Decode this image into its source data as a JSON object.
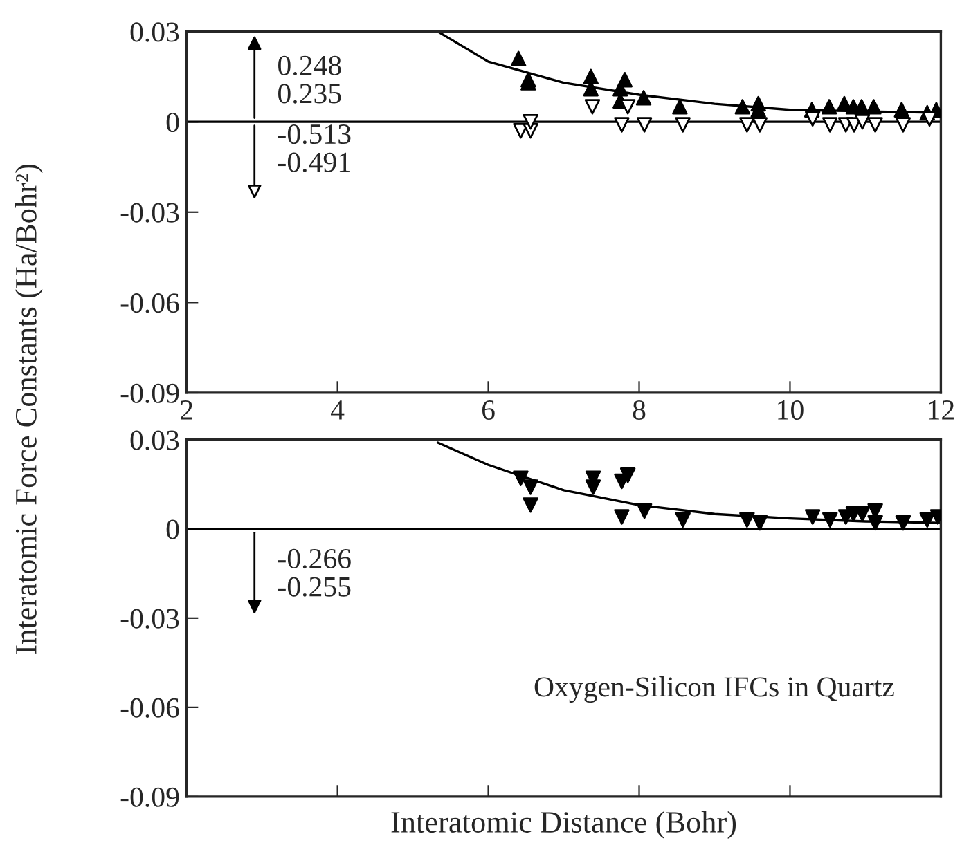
{
  "chart_data": [
    {
      "type": "scatter",
      "ylabel": "Interatomic Force Constants (Ha/Bohr²)",
      "xlim": [
        2,
        12
      ],
      "xticks": [
        2,
        4,
        6,
        8,
        10,
        12
      ],
      "ylim": [
        -0.09,
        0.03
      ],
      "yticks": [
        0.03,
        0,
        -0.03,
        -0.06,
        -0.09
      ],
      "grid": false,
      "annotations": [
        "0.248\n0.235",
        "-0.513\n-0.491"
      ],
      "ref_lines": [
        {
          "axis": "y",
          "value": 0,
          "label": null,
          "color": "#000000"
        }
      ],
      "series": [
        {
          "marker": "triangle",
          "color": "#000000",
          "x": [
            6.4,
            6.53,
            6.53,
            7.36,
            7.36,
            7.81,
            7.75,
            7.75,
            8.06,
            8.54,
            9.37,
            9.58,
            9.58,
            10.29,
            10.52,
            10.72,
            10.84,
            10.95,
            11.11,
            11.48,
            11.82,
            11.94
          ],
          "values": [
            0.021,
            0.014,
            0.013,
            0.015,
            0.011,
            0.014,
            0.011,
            0.007,
            0.008,
            0.005,
            0.005,
            0.006,
            0.004,
            0.004,
            0.005,
            0.006,
            0.005,
            0.005,
            0.005,
            0.004,
            0.003,
            0.004
          ]
        },
        {
          "marker": "triangle-down-open",
          "color": "#000000",
          "x": [
            6.43,
            6.56,
            6.56,
            7.38,
            7.85,
            7.77,
            8.07,
            8.58,
            9.43,
            9.6,
            10.3,
            10.53,
            10.74,
            10.85,
            10.96,
            11.13,
            11.5,
            11.85
          ],
          "values": [
            -0.003,
            -0.003,
            0.0,
            0.005,
            0.005,
            -0.001,
            -0.001,
            -0.001,
            -0.001,
            -0.001,
            0.001,
            -0.001,
            -0.001,
            -0.001,
            0.0,
            -0.001,
            -0.001,
            0.001
          ]
        },
        {
          "type": "line",
          "marker": "none",
          "color": "#000000",
          "x": [
            5.33,
            6,
            7,
            8,
            9,
            10,
            11,
            12
          ],
          "values": [
            0.03,
            0.02,
            0.013,
            0.009,
            0.006,
            0.004,
            0.0035,
            0.003
          ]
        }
      ]
    },
    {
      "type": "scatter",
      "xlabel": "Interatomic Distance (Bohr)",
      "xlim": [
        2,
        12
      ],
      "xticks": [
        2,
        4,
        6,
        8,
        10,
        12
      ],
      "ylim": [
        -0.09,
        0.03
      ],
      "yticks": [
        0.03,
        0,
        -0.03,
        -0.06,
        -0.09
      ],
      "tick_labels": "y",
      "grid": false,
      "annotations": [
        "-0.266\n-0.255",
        "Oxygen-Silicon IFCs in Quartz"
      ],
      "ref_lines": [
        {
          "axis": "y",
          "value": 0,
          "label": null,
          "color": "#000000"
        }
      ],
      "series": [
        {
          "marker": "triangle-down",
          "color": "#000000",
          "x": [
            6.43,
            6.56,
            6.56,
            7.39,
            7.39,
            7.85,
            7.77,
            7.77,
            8.07,
            8.58,
            9.43,
            9.6,
            10.3,
            10.53,
            10.74,
            10.84,
            10.96,
            11.13,
            11.13,
            11.5,
            11.82,
            11.96
          ],
          "values": [
            0.017,
            0.014,
            0.008,
            0.017,
            0.014,
            0.018,
            0.016,
            0.004,
            0.006,
            0.003,
            0.003,
            0.002,
            0.004,
            0.003,
            0.004,
            0.005,
            0.005,
            0.006,
            0.002,
            0.002,
            0.003,
            0.004
          ]
        },
        {
          "type": "line",
          "marker": "none",
          "color": "#000000",
          "x": [
            5.33,
            6,
            7,
            8,
            9,
            10,
            11,
            12
          ],
          "values": [
            0.029,
            0.0215,
            0.013,
            0.008,
            0.005,
            0.0035,
            0.0025,
            0.002
          ]
        }
      ]
    }
  ]
}
